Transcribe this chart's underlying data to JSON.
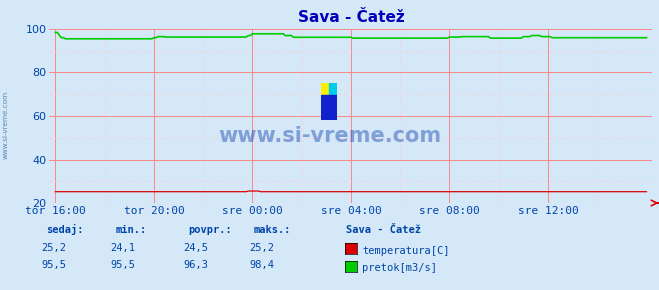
{
  "title": "Sava - Čatež",
  "bg_color": "#d4e8f8",
  "plot_bg_color": "#d4e8f8",
  "grid_color_major": "#ff8888",
  "grid_color_minor": "#ffcccc",
  "x_tick_labels": [
    "tor 16:00",
    "tor 20:00",
    "sre 00:00",
    "sre 04:00",
    "sre 08:00",
    "sre 12:00"
  ],
  "x_tick_positions": [
    0.0,
    0.1667,
    0.3333,
    0.5,
    0.6667,
    0.8333
  ],
  "ylim": [
    20,
    100
  ],
  "yticks": [
    20,
    40,
    60,
    80,
    100
  ],
  "temp_color": "#dd0000",
  "flow_color": "#00cc00",
  "watermark_text": "www.si-vreme.com",
  "watermark_color": "#0033aa",
  "watermark_alpha": 0.4,
  "sidebar_text": "www.si-vreme.com",
  "sidebar_color": "#4477aa",
  "title_color": "#0000bb",
  "title_fontsize": 11,
  "tick_label_color": "#0044aa",
  "tick_label_fontsize": 8,
  "legend_title": "Sava - Čatež",
  "legend_items": [
    "temperatura[C]",
    "pretok[m3/s]"
  ],
  "legend_colors": [
    "#dd0000",
    "#00cc00"
  ],
  "table_headers": [
    "sedaj:",
    "min.:",
    "povpr.:",
    "maks.:"
  ],
  "table_row1": [
    "25,2",
    "24,1",
    "24,5",
    "25,2"
  ],
  "table_row2": [
    "95,5",
    "95,5",
    "96,3",
    "98,4"
  ],
  "table_color": "#0044aa",
  "n_points": 289
}
